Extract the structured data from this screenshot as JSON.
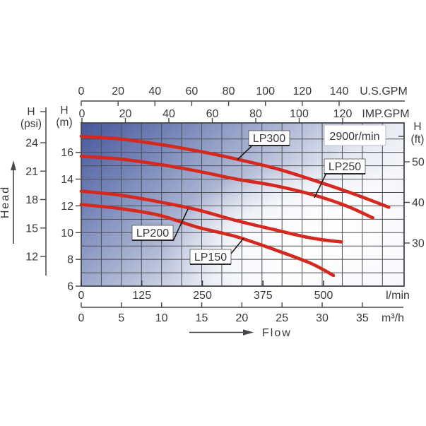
{
  "chart_data": {
    "type": "line",
    "rpm_label": "2900r/min",
    "flow_axis_label": "Flow",
    "head_axis_label": "Head",
    "axes": {
      "us_gpm": {
        "label": "U.S.GPM",
        "ticks": [
          0,
          20,
          40,
          60,
          80,
          100,
          120,
          140
        ]
      },
      "imp_gpm": {
        "label": "IMP.GPM",
        "ticks": [
          0,
          20,
          40,
          60,
          80,
          100,
          120
        ]
      },
      "head_psi": {
        "h": "H",
        "unit": "(psi)",
        "ticks": [
          24,
          21,
          18,
          15,
          12
        ]
      },
      "head_m": {
        "h": "H",
        "unit": "(m)",
        "ticks": [
          16,
          14,
          12,
          10,
          8,
          6
        ]
      },
      "head_ft": {
        "h": "H",
        "unit": "(ft)",
        "ticks": [
          50,
          40,
          30
        ]
      },
      "lmin": {
        "label": "l/min",
        "ticks": [
          0,
          125,
          250,
          375,
          500
        ]
      },
      "m3h": {
        "label": "m³/h",
        "ticks": [
          0,
          5,
          10,
          15,
          20,
          25,
          30,
          35
        ]
      }
    },
    "x_unit": "m³/h",
    "y_unit": "m",
    "x_range": [
      0,
      40.2
    ],
    "y_range": [
      6,
      18.2
    ],
    "grid": {
      "x_step_m3h": 2.5,
      "y_step_m": 1
    },
    "series": [
      {
        "name": "LP300",
        "flow_m3h": [
          0,
          4.8,
          9.7,
          14.5,
          19.3,
          24.2,
          29.0,
          33.9,
          38.3
        ],
        "head_m": [
          17.2,
          17.0,
          16.6,
          16.1,
          15.5,
          14.8,
          13.9,
          12.9,
          11.9
        ]
      },
      {
        "name": "LP250",
        "flow_m3h": [
          0,
          4.8,
          9.7,
          14.5,
          19.3,
          24.2,
          29.0,
          33.0,
          36.3
        ],
        "head_m": [
          15.7,
          15.5,
          15.1,
          14.6,
          14.0,
          13.5,
          12.8,
          12.0,
          11.1
        ]
      },
      {
        "name": "LP200",
        "flow_m3h": [
          0,
          4.8,
          9.7,
          14.5,
          19.3,
          24.2,
          28.6,
          32.4
        ],
        "head_m": [
          13.1,
          12.8,
          12.3,
          11.7,
          10.9,
          10.2,
          9.6,
          9.3
        ]
      },
      {
        "name": "LP150",
        "flow_m3h": [
          0,
          4.8,
          9.7,
          14.5,
          19.3,
          24.2,
          28.6,
          31.4
        ],
        "head_m": [
          12.1,
          11.8,
          11.3,
          10.4,
          9.7,
          8.7,
          7.7,
          6.8
        ]
      }
    ],
    "legend_position": "on-curve-callouts",
    "grid_on": true,
    "colors": {
      "curve": "#d5281e",
      "grid": "#4d4f55",
      "bg_dark": "#46569b",
      "bg_light": "#ffffff",
      "text": "#3a3a3d"
    }
  }
}
